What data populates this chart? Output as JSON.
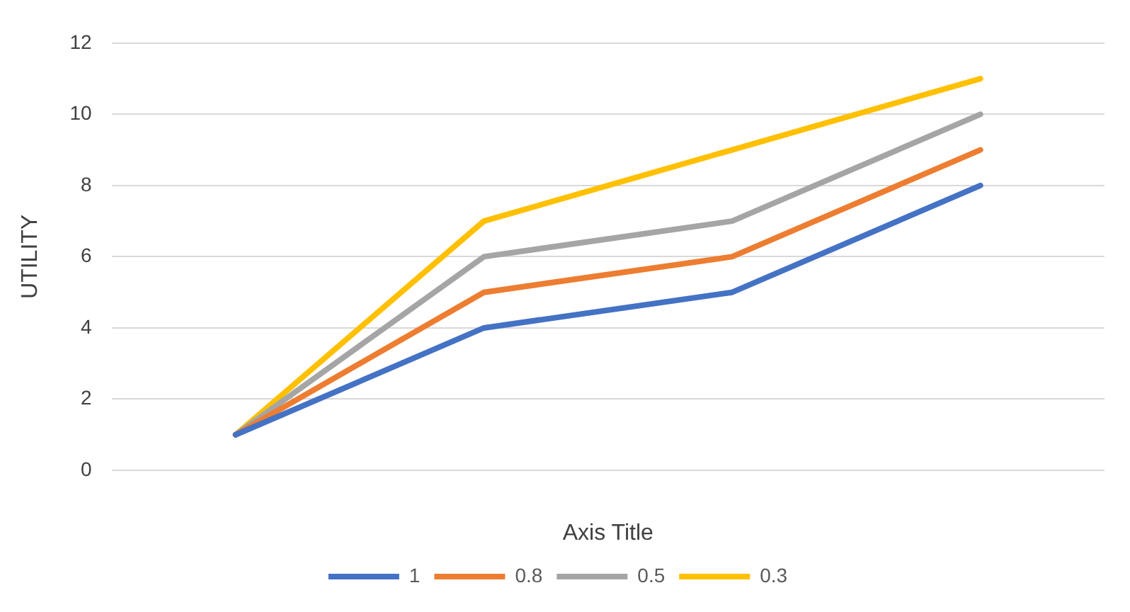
{
  "chart_data": {
    "type": "line",
    "xlabel": "Axis Title",
    "ylabel": "UTILITY",
    "categories": [
      null,
      null,
      null,
      null
    ],
    "series": [
      {
        "name": "1",
        "color": "#4472c4",
        "values": [
          1,
          4,
          5,
          8
        ]
      },
      {
        "name": "0.8",
        "color": "#ed7d31",
        "values": [
          1,
          5,
          6,
          9
        ]
      },
      {
        "name": "0.5",
        "color": "#a5a5a5",
        "values": [
          1,
          6,
          7,
          10
        ]
      },
      {
        "name": "0.3",
        "color": "#ffc000",
        "values": [
          1,
          7,
          9,
          11
        ]
      }
    ],
    "ylim": [
      0,
      12
    ],
    "yticks": [
      0,
      2,
      4,
      6,
      8,
      10,
      12
    ],
    "grid": "y",
    "legend": "bottom",
    "marker": "none",
    "line_style": "solid"
  }
}
